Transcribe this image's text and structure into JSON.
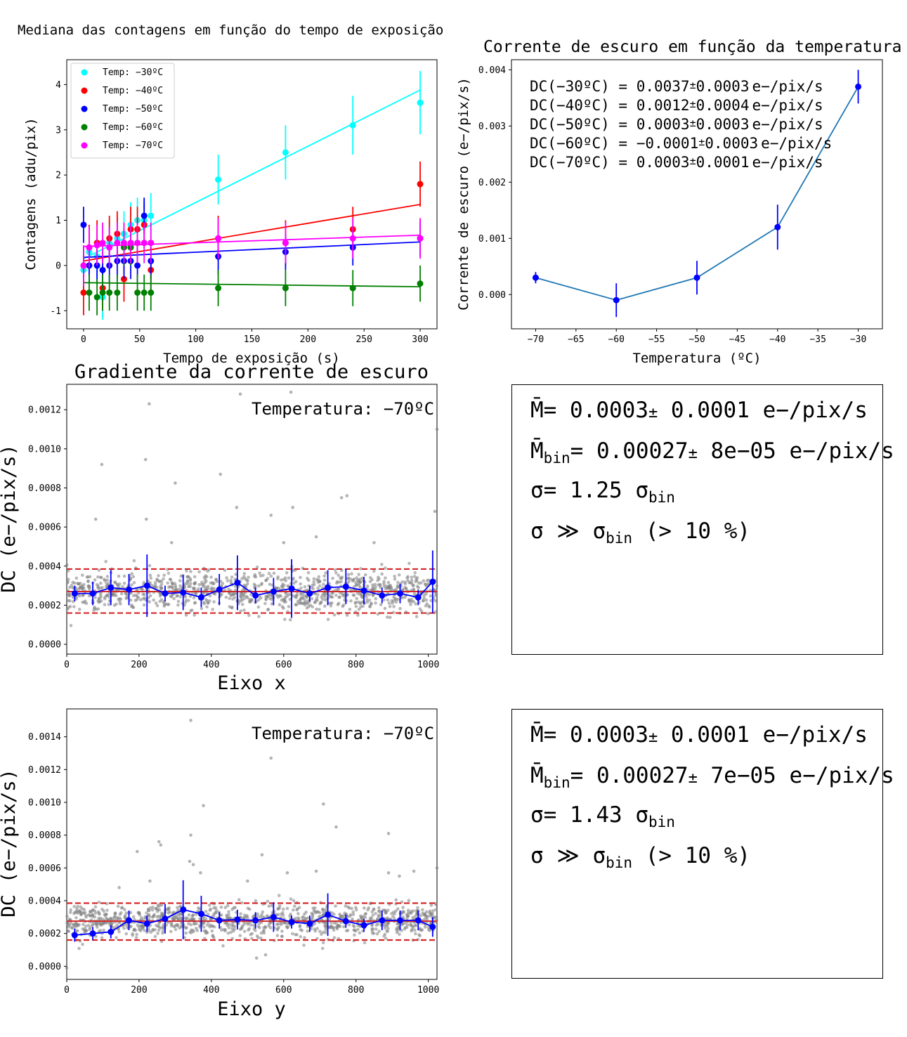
{
  "chart_data": [
    {
      "id": "counts",
      "type": "scatter",
      "title": "Mediana das contagens em função do tempo de exposição",
      "xlabel": "Tempo de exposição (s)",
      "ylabel": "Contagens (adu/pix)",
      "xlim": [
        -15,
        315
      ],
      "ylim": [
        -1.4,
        4.55
      ],
      "xticks": [
        0,
        50,
        100,
        150,
        200,
        250,
        300
      ],
      "yticks": [
        -1,
        0,
        1,
        2,
        3,
        4
      ],
      "legend_position": "upper-left",
      "x": [
        0,
        5,
        12,
        17,
        23,
        30,
        36,
        42,
        48,
        54,
        60,
        120,
        180,
        240,
        300
      ],
      "series": [
        {
          "name": "Temp: −30ºC",
          "color": "#00ffff",
          "values": [
            -0.1,
            0.3,
            0.2,
            -0.7,
            0.5,
            0.6,
            0.7,
            0.9,
            1.0,
            1.0,
            1.1,
            1.9,
            2.5,
            3.1,
            3.6
          ],
          "errors": [
            0.5,
            0.5,
            0.5,
            0.5,
            0.5,
            0.5,
            0.5,
            0.5,
            0.5,
            0.5,
            0.5,
            0.55,
            0.6,
            0.65,
            0.7
          ],
          "fit": [
            0.15,
            3.88
          ]
        },
        {
          "name": "Temp: −40ºC",
          "color": "#ff0000",
          "values": [
            -0.6,
            0.4,
            0.5,
            -0.5,
            0.6,
            0.7,
            -0.3,
            0.8,
            0.8,
            0.9,
            -0.1,
            0.6,
            0.5,
            0.8,
            1.8
          ],
          "errors": [
            0.5,
            0.5,
            0.5,
            0.5,
            0.5,
            0.5,
            0.5,
            0.5,
            0.5,
            0.5,
            0.5,
            0.5,
            0.5,
            0.5,
            0.5
          ],
          "fit": [
            0.1,
            1.35
          ]
        },
        {
          "name": "Temp: −50ºC",
          "color": "#0000ff",
          "values": [
            0.9,
            0.0,
            0.0,
            -0.1,
            0.0,
            0.1,
            0.1,
            0.1,
            0.0,
            1.1,
            0.1,
            0.2,
            0.3,
            0.4,
            0.6
          ],
          "errors": [
            0.4,
            0.4,
            0.4,
            0.4,
            0.4,
            0.4,
            0.4,
            0.4,
            0.4,
            0.4,
            0.4,
            0.4,
            0.4,
            0.4,
            0.4
          ],
          "fit": [
            0.18,
            0.52
          ]
        },
        {
          "name": "Temp: −60ºC",
          "color": "#008000",
          "values": [
            0.0,
            -0.6,
            -0.7,
            -0.6,
            -0.6,
            -0.6,
            0.4,
            0.4,
            -0.6,
            -0.6,
            -0.6,
            -0.5,
            -0.5,
            -0.5,
            -0.4
          ],
          "errors": [
            0.4,
            0.4,
            0.4,
            0.4,
            0.4,
            0.4,
            0.4,
            0.4,
            0.4,
            0.4,
            0.4,
            0.4,
            0.4,
            0.4,
            0.4
          ],
          "fit": [
            -0.38,
            -0.47
          ]
        },
        {
          "name": "Temp: −70ºC",
          "color": "#ff00ff",
          "values": [
            0.0,
            0.4,
            0.45,
            0.5,
            0.4,
            0.5,
            0.5,
            0.5,
            0.5,
            0.5,
            0.5,
            0.6,
            0.5,
            0.6,
            0.6
          ],
          "errors": [
            0.45,
            0.45,
            0.45,
            0.45,
            0.45,
            0.45,
            0.45,
            0.45,
            0.45,
            0.45,
            0.45,
            0.45,
            0.45,
            0.45,
            0.45
          ],
          "fit": [
            0.42,
            0.67
          ]
        }
      ]
    },
    {
      "id": "dc_temp",
      "type": "line",
      "title": "Corrente de escuro em função da temperatura",
      "xlabel": "Temperatura (ºC)",
      "ylabel": "Corrente de escuro (e−/pix/s)",
      "xlim": [
        -73,
        -27
      ],
      "ylim": [
        -0.00061,
        0.00418
      ],
      "xticks": [
        -70,
        -65,
        -60,
        -55,
        -50,
        -45,
        -40,
        -35,
        -30
      ],
      "xtick_labels": [
        "−70",
        "−65",
        "−60",
        "−55",
        "−50",
        "−45",
        "−40",
        "−35",
        "−30"
      ],
      "yticks": [
        0.0,
        0.001,
        0.002,
        0.003,
        0.004
      ],
      "ytick_labels": [
        "0.000",
        "0.001",
        "0.002",
        "0.003",
        "0.004"
      ],
      "x": [
        -70,
        -60,
        -50,
        -40,
        -30
      ],
      "values": [
        0.0003,
        -0.0001,
        0.0003,
        0.0012,
        0.0037
      ],
      "errors": [
        0.0001,
        0.0003,
        0.0003,
        0.0004,
        0.0003
      ],
      "line_color": "#1f77b4",
      "marker_color": "#0000ff",
      "annotations": [
        {
          "label": "DC(−30ºC) = ",
          "value": "0.0037",
          "err": "0.0003",
          "unit": "e−/pix/s"
        },
        {
          "label": "DC(−40ºC) = ",
          "value": "0.0012",
          "err": "0.0004",
          "unit": "e−/pix/s"
        },
        {
          "label": "DC(−50ºC) = ",
          "value": "0.0003",
          "err": "0.0003",
          "unit": "e−/pix/s"
        },
        {
          "label": "DC(−60ºC) = ",
          "value": "−0.0001",
          "err": "0.0003",
          "unit": "e−/pix/s"
        },
        {
          "label": "DC(−70ºC) = ",
          "value": "0.0003",
          "err": "0.0001",
          "unit": "e−/pix/s"
        }
      ]
    },
    {
      "id": "grad_x",
      "type": "scatter",
      "title": "Gradiente da corrente de escuro",
      "xlabel": "Eixo x",
      "ylabel": "DC (e−/pix/s)",
      "annotation": "Temperatura: −70ºC",
      "xlim": [
        0,
        1024
      ],
      "ylim": [
        -5e-05,
        0.00133
      ],
      "xticks": [
        0,
        200,
        400,
        600,
        800,
        1000
      ],
      "yticks": [
        0.0,
        0.0002,
        0.0004,
        0.0006,
        0.0008,
        0.001,
        0.0012
      ],
      "ytick_labels": [
        "0.0000",
        "0.0002",
        "0.0004",
        "0.0006",
        "0.0008",
        "0.0010",
        "0.0012"
      ],
      "mean": 0.00027,
      "band": [
        0.00016,
        0.000385
      ],
      "outliers": [
        [
          97,
          0.00092
        ],
        [
          218,
          0.000945
        ],
        [
          228,
          0.00123
        ],
        [
          300,
          0.000825
        ],
        [
          425,
          0.00087
        ],
        [
          480,
          0.00128
        ],
        [
          620,
          0.00129
        ],
        [
          1024,
          0.0011
        ],
        [
          80,
          0.00064
        ],
        [
          470,
          0.0007
        ],
        [
          565,
          0.00066
        ],
        [
          625,
          0.0007
        ],
        [
          760,
          0.00075
        ],
        [
          775,
          0.00076
        ],
        [
          1018,
          0.00068
        ],
        [
          220,
          0.00064
        ],
        [
          290,
          0.00052
        ],
        [
          600,
          0.00052
        ],
        [
          690,
          0.00055
        ],
        [
          850,
          0.00052
        ]
      ],
      "bins": {
        "x": [
          22,
          72,
          122,
          172,
          222,
          272,
          322,
          372,
          422,
          472,
          522,
          572,
          622,
          672,
          722,
          772,
          822,
          872,
          922,
          972,
          1012
        ],
        "values": [
          0.00026,
          0.00026,
          0.00029,
          0.00028,
          0.0003,
          0.00026,
          0.000265,
          0.00024,
          0.00028,
          0.000315,
          0.00025,
          0.00027,
          0.000285,
          0.00026,
          0.00029,
          0.000295,
          0.000275,
          0.00025,
          0.00026,
          0.00024,
          0.00032
        ],
        "errors": [
          4e-05,
          6e-05,
          9e-05,
          8e-05,
          0.00016,
          4e-05,
          9e-05,
          5e-05,
          8e-05,
          0.00014,
          4e-05,
          7e-05,
          0.00015,
          4e-05,
          9e-05,
          9e-05,
          7e-05,
          4e-05,
          5e-05,
          4e-05,
          0.00016
        ]
      },
      "stats": {
        "m": "0.0003",
        "m_err": "0.0001",
        "mbin": "0.00027",
        "mbin_err": "8e−05",
        "unit": "e−/pix/s",
        "ratio": "1.25",
        "extra": "(> 10 %)"
      }
    },
    {
      "id": "grad_y",
      "type": "scatter",
      "title": "",
      "xlabel": "Eixo y",
      "ylabel": "DC (e−/pix/s)",
      "annotation": "Temperatura: −70ºC",
      "xlim": [
        0,
        1024
      ],
      "ylim": [
        -8e-05,
        0.00157
      ],
      "xticks": [
        0,
        200,
        400,
        600,
        800,
        1000
      ],
      "yticks": [
        0.0,
        0.0002,
        0.0004,
        0.0006,
        0.0008,
        0.001,
        0.0012,
        0.0014
      ],
      "ytick_labels": [
        "0.0000",
        "0.0002",
        "0.0004",
        "0.0006",
        "0.0008",
        "0.0010",
        "0.0012",
        "0.0014"
      ],
      "mean": 0.000275,
      "band": [
        0.00016,
        0.000385
      ],
      "outliers": [
        [
          343,
          0.0015
        ],
        [
          565,
          0.00127
        ],
        [
          378,
          0.00098
        ],
        [
          710,
          0.00099
        ],
        [
          745,
          0.00085
        ],
        [
          343,
          0.0008
        ],
        [
          890,
          0.00081
        ],
        [
          255,
          0.00076
        ],
        [
          260,
          0.00074
        ],
        [
          195,
          0.0007
        ],
        [
          540,
          0.00068
        ],
        [
          340,
          0.00064
        ],
        [
          350,
          0.00062
        ],
        [
          370,
          0.00057
        ],
        [
          690,
          0.00058
        ],
        [
          890,
          0.00057
        ],
        [
          920,
          0.00055
        ],
        [
          960,
          0.00058
        ],
        [
          1024,
          0.0006
        ],
        [
          230,
          0.00052
        ],
        [
          500,
          0.00052
        ],
        [
          610,
          0.00057
        ],
        [
          145,
          0.00048
        ],
        [
          550,
          7e-05
        ],
        [
          525,
          5e-05
        ],
        [
          0,
          -1e-05
        ]
      ],
      "bins": {
        "x": [
          22,
          72,
          122,
          172,
          222,
          272,
          322,
          372,
          422,
          472,
          522,
          572,
          622,
          672,
          722,
          772,
          822,
          872,
          922,
          972,
          1012
        ],
        "values": [
          0.00019,
          0.0002,
          0.00021,
          0.00028,
          0.00026,
          0.00029,
          0.000345,
          0.00032,
          0.00028,
          0.000285,
          0.00028,
          0.0003,
          0.00027,
          0.00026,
          0.000315,
          0.000275,
          0.00025,
          0.00028,
          0.00028,
          0.00028,
          0.00024
        ]
      },
      "bin_errors": [
        4e-05,
        4e-05,
        4e-05,
        6e-05,
        5e-05,
        9e-05,
        0.00018,
        0.00011,
        5e-05,
        6e-05,
        5e-05,
        9e-05,
        4e-05,
        5e-05,
        0.00013,
        4e-05,
        4e-05,
        6e-05,
        6e-05,
        6e-05,
        6e-05
      ],
      "stats": {
        "m": "0.0003",
        "m_err": "0.0001",
        "mbin": "0.00027",
        "mbin_err": "7e−05",
        "unit": "e−/pix/s",
        "ratio": "1.43",
        "extra": "(> 10 %)"
      }
    }
  ]
}
